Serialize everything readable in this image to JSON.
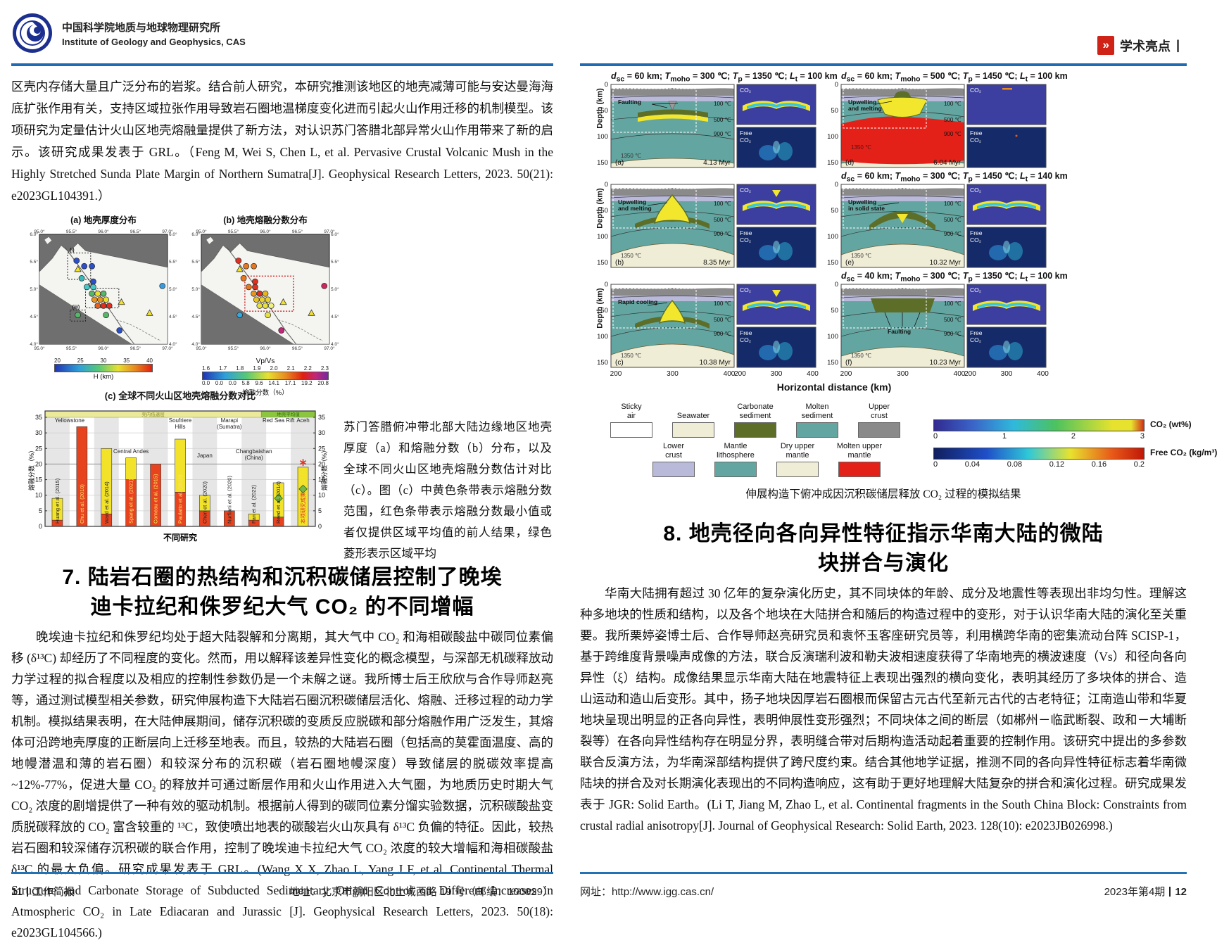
{
  "left_page": {
    "header": {
      "org_cn": "中国科学院地质与地球物理研究所",
      "org_en": "Institute of Geology and Geophysics, CAS"
    },
    "intro_text": "区壳内存储大量且广泛分布的岩浆。结合前人研究，本研究推测该地区的地壳减薄可能与安达曼海海底扩张作用有关，支持区域拉张作用导致岩石圈地温梯度变化进而引起火山作用迁移的机制模型。该项研究为定量估计火山区地壳熔融量提供了新方法，对认识苏门答腊北部异常火山作用带来了新的启示。该研究成果发表于 GRL。（Feng M, Wei S, Chen L, et al. Pervasive Crustal Volcanic Mush in the Highly Stretched Sunda Plate Margin of Northern Sumatra[J]. Geophysical Research Letters, 2023. 50(21): e2023GL104391.）",
    "figure_caption": "苏门答腊俯冲带北部大陆边缘地区地壳厚度（a）和熔融分数（b）分布，以及全球不同火山区地壳熔融分数估计对比（c）。图（c）中黄色条带表示熔融分数范围，红色条带表示熔融分数最小值或者仅提供区域平均值的前人结果，绿色菱形表示区域平均",
    "section7": {
      "number": "7.",
      "title_line1": "陆岩石圈的热结构和沉积碳储层控制了晚埃",
      "title_line2": "迪卡拉纪和侏罗纪大气 CO₂ 的不同增幅",
      "body": "晚埃迪卡拉纪和侏罗纪均处于超大陆裂解和分离期，其大气中 CO₂ 和海相碳酸盐中碳同位素偏移 (δ¹³C) 却经历了不同程度的变化。然而，用以解释该差异性变化的概念模型，与深部无机碳释放动力学过程的拟合程度以及相应的控制性参数仍是一个未解之谜。我所博士后王欣欣与合作导师赵亮等，通过测试模型相关参数，研究伸展构造下大陆岩石圈沉积碳储层活化、熔融、迁移过程的动力学机制。模拟结果表明，在大陆伸展期间，储存沉积碳的变质反应脱碳和部分熔融作用广泛发生，其熔体可沿跨地壳厚度的正断层向上迁移至地表。而且，较热的大陆岩石圈（包括高的莫霍面温度、高的地幔潜温和薄的岩石圈）和较深分布的沉积碳（岩石圈地幔深度）导致储层的脱碳效率提高 ~12%-77%，促进大量 CO₂ 的释放并可通过断层作用和火山作用进入大气圈，为地质历史时期大气 CO₂ 浓度的剧增提供了一种有效的驱动机制。根据前人得到的碳同位素分馏实验数据，沉积碳酸盐变质脱碳释放的 CO₂ 富含较重的 ¹³C，致使喷出地表的碳酸岩火山灰具有 δ¹³C 负偏的特征。因此，较热岩石圈和较深储存沉积碳的联合作用，控制了晚埃迪卡拉纪大气 CO₂ 浓度的较大增幅和海相碳酸盐 δ¹³C 的最大负偏。研究成果发表于 GRL。(Wang X X, Zhao L, Yang J F, et al. Continental Thermal Structure and Carbonate Storage of Subducted Sedimentary Origin Control on Different Increases in Atmospheric CO₂ in Late Ediacaran and Jurassic [J]. Geophysical Research Letters, 2023. 50(18): e2023GL104566.)"
    },
    "footer": {
      "page_no": "11",
      "label": "工作简报",
      "address": "地址：北京市朝阳区北土城西路 19 号（邮编：100029）"
    }
  },
  "right_page": {
    "badge": "学术亮点",
    "figure_caption": "伸展构造下俯冲成因沉积碳储层释放 CO₂ 过程的模拟结果",
    "section8": {
      "number": "8.",
      "title_line1": "地壳径向各向异性特征指示华南大陆的微陆",
      "title_line2": "块拼合与演化",
      "body": "华南大陆拥有超过 30 亿年的复杂演化历史，其不同块体的年龄、成分及地震性等表现出非均匀性。理解这种多地块的性质和结构，以及各个地块在大陆拼合和随后的构造过程中的变形，对于认识华南大陆的演化至关重要。我所栗婷姿博士后、合作导师赵亮研究员和袁怀玉客座研究员等，利用横跨华南的密集流动台阵 SCISP-1，基于跨维度背景噪声成像的方法，联合反演瑞利波和勒夫波相速度获得了华南地壳的横波速度（Vs）和径向各向异性（ξ）结构。成像结果显示华南大陆在地震特征上表现出强烈的横向变化，表明其经历了多块体的拼合、造山运动和造山后变形。其中，扬子地块因厚岩石圈根而保留古元古代至新元古代的古老特征；江南造山带和华夏地块呈现出明显的正各向异性，表明伸展性变形强烈；不同块体之间的断层（如郴州－临武断裂、政和－大埔断裂等）在各向异性结构存在明显分界，表明缝合带对后期构造活动起着重要的控制作用。该研究中提出的多参数联合反演方法，为华南深部结构提供了跨尺度约束。结合其他地学证据，推测不同的各向异性特征标志着华南微陆块的拼合及对长期演化表现出的不同构造响应，这有助于更好地理解大陆复杂的拼合和演化过程。研究成果发表于 JGR: Solid Earth。(Li T, Jiang M, Zhao L, et al. Continental fragments in the South China Block: Constraints from crustal radial anisotropy[J]. Journal of Geophysical Research: Solid Earth, 2023. 128(10): e2023JB026998.)"
    },
    "footer": {
      "url_label": "网址：",
      "url": "http://www.igg.cas.cn/",
      "issue": "2023年第4期",
      "page_no": "12"
    }
  },
  "chart_data": [
    {
      "type": "scatter",
      "title_a": "(a) 地壳厚度分布",
      "title_b": "(b) 地壳熔融分数分布",
      "lon_ticks": [
        "95.0°",
        "95.5°",
        "96.0°",
        "96.5°",
        "97.0°"
      ],
      "lat_ticks": [
        "6.0°",
        "5.5°",
        "5.0°",
        "4.5°",
        "4.0°"
      ],
      "colorbar_a": {
        "label": "H (km)",
        "ticks": [
          "20",
          "25",
          "30",
          "35",
          "40"
        ]
      },
      "colorbar_b": {
        "top_label": "Vp/Vs",
        "top_ticks": [
          "1.6",
          "1.7",
          "1.8",
          "1.9",
          "2.0",
          "2.1",
          "2.2",
          "2.3"
        ],
        "bottom_ticks": [
          "0.0",
          "0.0",
          "0.0",
          "5.8",
          "9.6",
          "14.1",
          "17.1",
          "19.2",
          "20.8"
        ],
        "bottom_label": "熔融分数（%）"
      },
      "region_boxes_a": [
        {
          "x": 0.22,
          "y": 0.17,
          "w": 0.18,
          "h": 0.24,
          "label": "(i)"
        },
        {
          "x": 0.36,
          "y": 0.49,
          "w": 0.26,
          "h": 0.18,
          "label": "(ii)"
        },
        {
          "x": 0.24,
          "y": 0.69,
          "w": 0.12,
          "h": 0.1,
          "label": "(iii)"
        }
      ],
      "region_box_b": {
        "x": 0.34,
        "y": 0.38,
        "w": 0.38,
        "h": 0.32
      },
      "volcano_markers": [
        {
          "x": 0.3,
          "y": 0.32
        },
        {
          "x": 0.64,
          "y": 0.62
        },
        {
          "x": 0.86,
          "y": 0.72
        }
      ],
      "stations": [
        {
          "x": 0.29,
          "y": 0.24,
          "a": "#2b50c8",
          "b": "#e03020"
        },
        {
          "x": 0.35,
          "y": 0.29,
          "a": "#2b50c8",
          "b": "#e87820"
        },
        {
          "x": 0.41,
          "y": 0.29,
          "a": "#2b50c8",
          "b": "#e87820"
        },
        {
          "x": 0.33,
          "y": 0.4,
          "a": "#38b8b8",
          "b": "#e87820"
        },
        {
          "x": 0.42,
          "y": 0.43,
          "a": "#2b50c8",
          "b": "#e03020"
        },
        {
          "x": 0.37,
          "y": 0.48,
          "a": "#45c8c8",
          "b": "#e87820"
        },
        {
          "x": 0.42,
          "y": 0.48,
          "a": "#45c8c8",
          "b": "#e03020"
        },
        {
          "x": 0.96,
          "y": 0.47,
          "a": "#3a9ade",
          "b": "#cc2860"
        },
        {
          "x": 0.41,
          "y": 0.54,
          "a": "#55b868",
          "b": "#e89420"
        },
        {
          "x": 0.455,
          "y": 0.54,
          "a": "#e8e030",
          "b": "#e03020"
        },
        {
          "x": 0.5,
          "y": 0.54,
          "a": "#55b868",
          "b": "#e8b420"
        },
        {
          "x": 0.43,
          "y": 0.595,
          "a": "#e89420",
          "b": "#e8c428"
        },
        {
          "x": 0.475,
          "y": 0.595,
          "a": "#e89420",
          "b": "#e8d030"
        },
        {
          "x": 0.52,
          "y": 0.595,
          "a": "#e8e030",
          "b": "#e8d030"
        },
        {
          "x": 0.455,
          "y": 0.65,
          "a": "#e86020",
          "b": "#e8e040"
        },
        {
          "x": 0.5,
          "y": 0.65,
          "a": "#e03020",
          "b": "#e8e040"
        },
        {
          "x": 0.545,
          "y": 0.65,
          "a": "#e03020",
          "b": "#eef080"
        },
        {
          "x": 0.3,
          "y": 0.735,
          "a": "#55b868",
          "b": "#30a8e0"
        },
        {
          "x": 0.52,
          "y": 0.735,
          "a": "#55b868",
          "b": "#e8e040"
        },
        {
          "x": 0.625,
          "y": 0.875,
          "a": "#2b50c8",
          "b": "#c02878"
        }
      ]
    },
    {
      "type": "bar",
      "title": "(c) 全球不同火山区地壳熔融分数对比",
      "xlabel": "不同研究",
      "ylabel": "熔融分数（%）",
      "ylim": [
        0,
        35
      ],
      "grid_step": 5,
      "top_bands": [
        {
          "label": "壳内低速层",
          "color": "#eaea9a",
          "text_color": "#8a8a2a",
          "from": 0,
          "to": 0.8
        },
        {
          "label": "地壳平均值",
          "color": "#8cc63f",
          "text_color": "#2a6a10",
          "from": 0.8,
          "to": 1.0
        }
      ],
      "regions": [
        {
          "label": "Yellowstone",
          "from": 0,
          "to": 1,
          "ly": 30
        },
        {
          "label": "Central Andes",
          "from": 2,
          "to": 4,
          "ly": 74
        },
        {
          "label": "Soufriere\nHills",
          "from": 5,
          "to": 5,
          "ly": 30
        },
        {
          "label": "Japan",
          "from": 6,
          "to": 6,
          "ly": 80
        },
        {
          "label": "Marapi\n(Sumatra)",
          "from": 7,
          "to": 7,
          "ly": 30
        },
        {
          "label": "Changbaishan\n(China)",
          "from": 8,
          "to": 8,
          "ly": 74
        },
        {
          "label": "Red Sea Rift",
          "from": 9,
          "to": 9,
          "ly": 30
        },
        {
          "label": "Aceh",
          "from": 10,
          "to": 10,
          "ly": 30
        }
      ],
      "bars": [
        {
          "author": "Huang et al. (2015)",
          "red": [
            0,
            2
          ],
          "yellow": [
            2,
            9
          ]
        },
        {
          "author": "Chu et al. (2010)",
          "red": [
            0,
            32
          ],
          "label_on_bar": true
        },
        {
          "author": "Ward et al. (2014)",
          "red": [
            0,
            4
          ],
          "yellow": [
            4,
            25
          ]
        },
        {
          "author": "Spang et al. (2021)",
          "red": [
            0,
            15
          ],
          "yellow": [
            15,
            22
          ],
          "label_on_bar": true
        },
        {
          "author": "Comeau et al. (2015)",
          "red": [
            0,
            20
          ],
          "label_on_bar": true
        },
        {
          "author": "Paulatto et al. (2019)",
          "red": [
            0,
            11
          ],
          "yellow": [
            11,
            28
          ],
          "label_on_bar": true
        },
        {
          "author": "Chen et al. (2020)",
          "red": [
            0,
            5
          ],
          "yellow": [
            5,
            10
          ]
        },
        {
          "author": "Nurfiani et al. (2020)",
          "red": [
            0,
            5
          ]
        },
        {
          "author": "Fan et al. (2022)",
          "red": [
            0,
            2
          ],
          "yellow": [
            2,
            4
          ]
        },
        {
          "author": "Reed et al. (2014)",
          "red": [
            0,
            3
          ],
          "yellow": [
            3,
            14
          ],
          "diamond": 9
        },
        {
          "author": "本项研究成果",
          "yellow": [
            0,
            19
          ],
          "diamond": 12,
          "star": 20.5,
          "label_color": "#e03020"
        }
      ],
      "bar_colors": {
        "red": "#e8431f",
        "yellow": "#f2e32a",
        "diamond": "#7ab648",
        "star": "#e03020"
      }
    },
    {
      "type": "heatmap",
      "xlabel": "Horizontal distance (km)",
      "ylabel": "Depth (km)",
      "x_ticks": [
        "200",
        "300",
        "400"
      ],
      "depth_ticks": [
        "0",
        "50",
        "100",
        "150"
      ],
      "isotherm_labels": [
        "100 ℃",
        "500 ℃",
        "900 ℃",
        "1350 ℃"
      ],
      "sub_labels": {
        "co2": "CO₂",
        "free_co2": "Free CO₂"
      },
      "panels": [
        {
          "id": "(a)",
          "params": {
            "dsc": "60 km",
            "tmoho": "300 ℃",
            "tp": "1350 ℃",
            "lt": "100 km"
          },
          "note": "Faulting",
          "time": "4.13 Myr",
          "variant": "fault"
        },
        {
          "id": "(d)",
          "params": {
            "dsc": "60 km",
            "tmoho": "500 ℃",
            "tp": "1450 ℃",
            "lt": "100 km"
          },
          "note": "Upwelling\nand melting",
          "time": "6.04 Myr",
          "variant": "red"
        },
        {
          "id": "(b)",
          "note": "Upwelling\nand melting",
          "time": "8.35 Myr",
          "variant": "melt"
        },
        {
          "id": "(e)",
          "params": {
            "dsc": "60 km",
            "tmoho": "300 ℃",
            "tp": "1450 ℃",
            "lt": "140 km"
          },
          "note": "Upwelling\nin solid state",
          "time": "10.32 Myr",
          "variant": "solid"
        },
        {
          "id": "(c)",
          "note": "Rapid cooling",
          "time": "10.38 Myr",
          "variant": "cool"
        },
        {
          "id": "(f)",
          "params": {
            "dsc": "40 km",
            "tmoho": "300 ℃",
            "tp": "1350 ℃",
            "lt": "100 km"
          },
          "note": "Faulting",
          "time": "10.23 Myr",
          "variant": "fault2"
        }
      ],
      "legend": [
        {
          "label": "Sticky\nair",
          "color": "#ffffff"
        },
        {
          "label": "Seawater",
          "color": "#f0edd6"
        },
        {
          "label": "Carbonate\nsediment",
          "color": "#5c6e28"
        },
        {
          "label": "Molten\nsediment",
          "color": "#63a6a1"
        },
        {
          "label": "Upper\ncrust",
          "color": "#8a8a8a"
        },
        {
          "label": "Lower\ncrust",
          "color": "#b9b9d9"
        },
        {
          "label": "Mantle\nlithosphere",
          "color": "#63a6a1"
        },
        {
          "label": "Dry upper\nmantle",
          "color": "#f0edd6"
        },
        {
          "label": "Molten upper\nmantle",
          "color": "#e32119"
        }
      ],
      "colorbars": [
        {
          "label": "CO₂ (wt%)",
          "ticks": [
            "0",
            "1",
            "2",
            "3"
          ]
        },
        {
          "label": "Free CO₂ (kg/m³)",
          "ticks": [
            "0",
            "0.04",
            "0.08",
            "0.12",
            "0.16",
            "0.2"
          ]
        }
      ]
    }
  ]
}
